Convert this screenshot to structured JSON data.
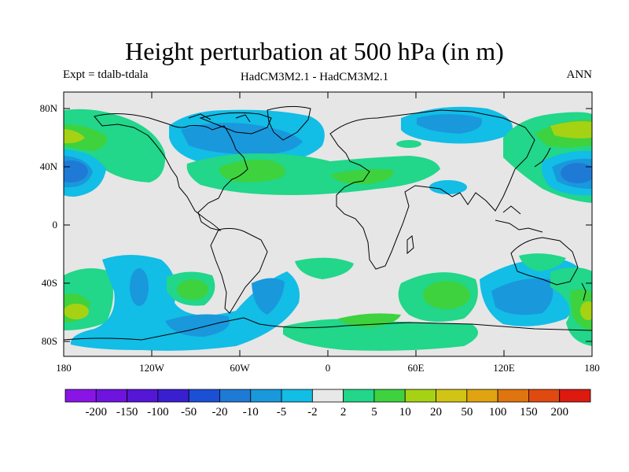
{
  "header": {
    "title": "Height perturbation at 500 hPa (in m)",
    "left": "Expt = tdalb-tdala",
    "center": "HadCM3M2.1 - HadCM3M2.1",
    "right": "ANN"
  },
  "axes": {
    "lat_labels": [
      "80N",
      "40N",
      "0",
      "40S",
      "80S"
    ],
    "lon_labels": [
      "180",
      "120W",
      "60W",
      "0",
      "60E",
      "120E",
      "180"
    ]
  },
  "colorbar": {
    "labels": [
      "-200",
      "-150",
      "-100",
      "-50",
      "-20",
      "-10",
      "-5",
      "-2",
      "2",
      "5",
      "10",
      "20",
      "50",
      "100",
      "150",
      "200"
    ],
    "colors": [
      "#8a14e6",
      "#6e14de",
      "#5516d6",
      "#3a1fd0",
      "#1b4fd6",
      "#1f7ad6",
      "#1a98dc",
      "#12bde6",
      "#e8e8e8",
      "#22d68a",
      "#3ed23e",
      "#a6d214",
      "#d2c414",
      "#e0a410",
      "#e0740e",
      "#e04a10",
      "#dc1a10"
    ]
  },
  "map": {
    "background": "#e6e6e6",
    "colors": {
      "neg_light": "#12bde6",
      "neg_mid": "#1a98dc",
      "neg_dark": "#1f7ad6",
      "pos_light": "#22d68a",
      "pos_mid": "#3ed23e",
      "pos_yellow": "#a6d214"
    }
  }
}
